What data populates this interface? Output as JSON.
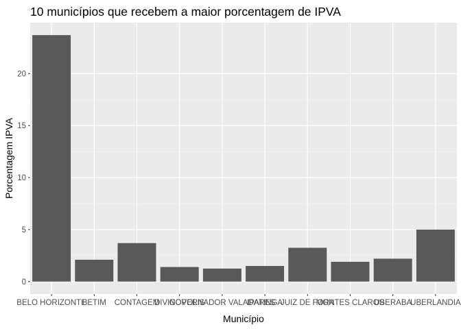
{
  "chart_data": {
    "type": "bar",
    "title": "10 municípios que recebem a maior porcentagem de IPVA",
    "xlabel": "Município",
    "ylabel": "Porcentagem IPVA",
    "categories": [
      "BELO HORIZONTE",
      "BETIM",
      "CONTAGEM",
      "DIVINOPOLIS",
      "GOVERNADOR VALADARES",
      "IPATINGA",
      "JUIZ DE FORA",
      "MONTES CLAROS",
      "UBERABA",
      "UBERLANDIA"
    ],
    "values": [
      23.7,
      2.1,
      3.7,
      1.4,
      1.25,
      1.5,
      3.25,
      1.9,
      2.2,
      5.0
    ],
    "ylim": [
      -1.2,
      24.9
    ],
    "yticks": [
      0,
      5,
      10,
      15,
      20
    ],
    "grid": true,
    "legend": "none",
    "colors": {
      "bar": "#595959",
      "panel": "#ebebeb",
      "grid_major": "#ffffff",
      "grid_minor": "#f5f5f5"
    }
  }
}
